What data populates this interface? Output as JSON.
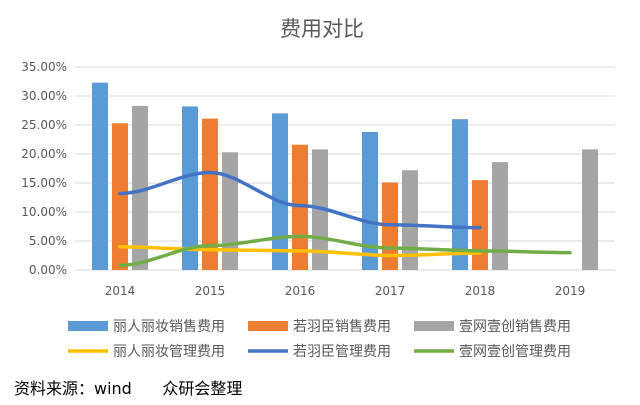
{
  "chart_data": {
    "type": "bar",
    "title": "费用对比",
    "categories": [
      "2014",
      "2015",
      "2016",
      "2017",
      "2018",
      "2019"
    ],
    "ylim": [
      0,
      35
    ],
    "yticks": [
      "0.00%",
      "5.00%",
      "10.00%",
      "15.00%",
      "20.00%",
      "25.00%",
      "30.00%",
      "35.00%"
    ],
    "grid": true,
    "legend_position": "bottom",
    "bar_series": [
      {
        "name": "丽人丽妆销售费用",
        "color": "#5B9BD5",
        "values": [
          32.3,
          28.2,
          27.0,
          23.8,
          26.0,
          null
        ]
      },
      {
        "name": "若羽臣销售费用",
        "color": "#ED7D31",
        "values": [
          25.3,
          26.1,
          21.6,
          15.1,
          15.5,
          null
        ]
      },
      {
        "name": "壹网壹创销售费用",
        "color": "#A5A5A5",
        "values": [
          28.3,
          20.3,
          20.8,
          17.2,
          18.6,
          20.8
        ]
      }
    ],
    "line_series": [
      {
        "name": "丽人丽妆管理费用",
        "color": "#FFC000",
        "values": [
          4.0,
          3.5,
          3.3,
          2.5,
          2.9,
          null
        ]
      },
      {
        "name": "若羽臣管理费用",
        "color": "#4472C4",
        "values": [
          13.2,
          16.8,
          11.1,
          7.8,
          7.3,
          null
        ]
      },
      {
        "name": "壹网壹创管理费用",
        "color": "#70AD47",
        "values": [
          0.8,
          4.2,
          5.8,
          3.8,
          3.3,
          3.0
        ]
      }
    ]
  },
  "source": "资料来源：wind      众研会整理"
}
